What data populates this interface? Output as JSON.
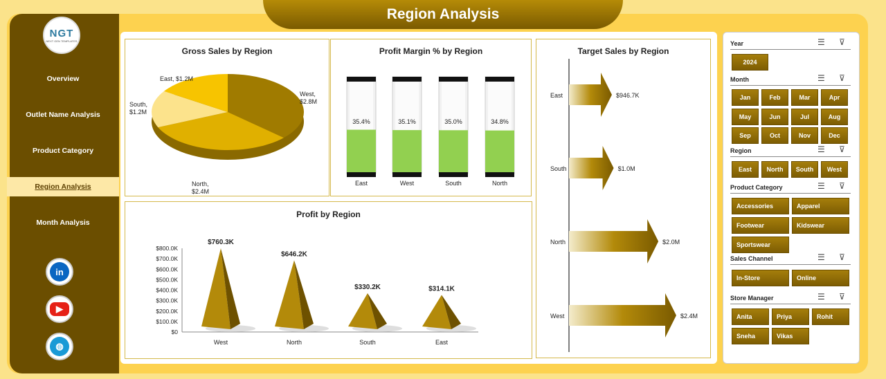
{
  "header": {
    "title": "Region Analysis"
  },
  "logo": {
    "text": "NGT",
    "subtext": "NEXT GEN TEMPLATES"
  },
  "nav": [
    {
      "label": "Overview",
      "active": false
    },
    {
      "label": "Outlet Name Analysis",
      "active": false
    },
    {
      "label": "Product Category",
      "active": false
    },
    {
      "label": "Region Analysis",
      "active": true
    },
    {
      "label": "Month Analysis",
      "active": false
    }
  ],
  "social": [
    {
      "name": "linkedin-icon",
      "glyph": "in",
      "color": "#0a66c2"
    },
    {
      "name": "youtube-icon",
      "glyph": "▶",
      "color": "#e62117"
    },
    {
      "name": "globe-icon",
      "glyph": "◍",
      "color": "#1a9ad6"
    }
  ],
  "colors": {
    "gold": "#9c7a07",
    "dark": "#6b4e00",
    "green": "#92d050",
    "accent": "#fdd24f"
  },
  "chart_data": [
    {
      "type": "pie",
      "title": "Gross Sales by Region",
      "categories": [
        "West",
        "North",
        "South",
        "East"
      ],
      "values": [
        2.8,
        2.4,
        1.2,
        1.2
      ],
      "data_labels": [
        "West,\n$2.8M",
        "North,\n$2.4M",
        "South,\n$1.2M",
        "East, $1.2M"
      ],
      "colors": [
        "#a07b00",
        "#e0b000",
        "#fce38c",
        "#f7c400"
      ]
    },
    {
      "type": "bar",
      "title": "Profit Margin % by Region",
      "categories": [
        "East",
        "West",
        "South",
        "North"
      ],
      "values": [
        35.4,
        35.1,
        35.0,
        34.8
      ],
      "data_labels": [
        "35.4%",
        "35.1%",
        "35.0%",
        "34.8%"
      ],
      "ylim": [
        0,
        100
      ]
    },
    {
      "type": "bar",
      "title": "Target Sales by Region",
      "categories": [
        "East",
        "South",
        "North",
        "West"
      ],
      "values": [
        0.9467,
        1.0,
        2.0,
        2.4
      ],
      "data_labels": [
        "$946.7K",
        "$1.0M",
        "$2.0M",
        "$2.4M"
      ],
      "orientation": "horizontal"
    },
    {
      "type": "bar",
      "title": "Profit by Region",
      "categories": [
        "West",
        "North",
        "South",
        "East"
      ],
      "values": [
        760.3,
        646.2,
        330.2,
        314.1
      ],
      "data_labels": [
        "$760.3K",
        "$646.2K",
        "$330.2K",
        "$314.1K"
      ],
      "ylim": [
        0,
        800
      ],
      "yticks": [
        "$0",
        "$100.0K",
        "$200.0K",
        "$300.0K",
        "$400.0K",
        "$500.0K",
        "$600.0K",
        "$700.0K",
        "$800.0K"
      ]
    }
  ],
  "slicers": {
    "year": {
      "title": "Year",
      "items": [
        "2024"
      ]
    },
    "month": {
      "title": "Month",
      "items": [
        "Jan",
        "Feb",
        "Mar",
        "Apr",
        "May",
        "Jun",
        "Jul",
        "Aug",
        "Sep",
        "Oct",
        "Nov",
        "Dec"
      ]
    },
    "region": {
      "title": "Region",
      "items": [
        "East",
        "North",
        "South",
        "West"
      ]
    },
    "category": {
      "title": "Product Category",
      "items": [
        "Accessories",
        "Apparel",
        "Footwear",
        "Kidswear",
        "Sportswear"
      ]
    },
    "channel": {
      "title": "Sales Channel",
      "items": [
        "In-Store",
        "Online"
      ]
    },
    "manager": {
      "title": "Store Manager",
      "items": [
        "Anita",
        "Priya",
        "Rohit",
        "Sneha",
        "Vikas"
      ]
    }
  }
}
